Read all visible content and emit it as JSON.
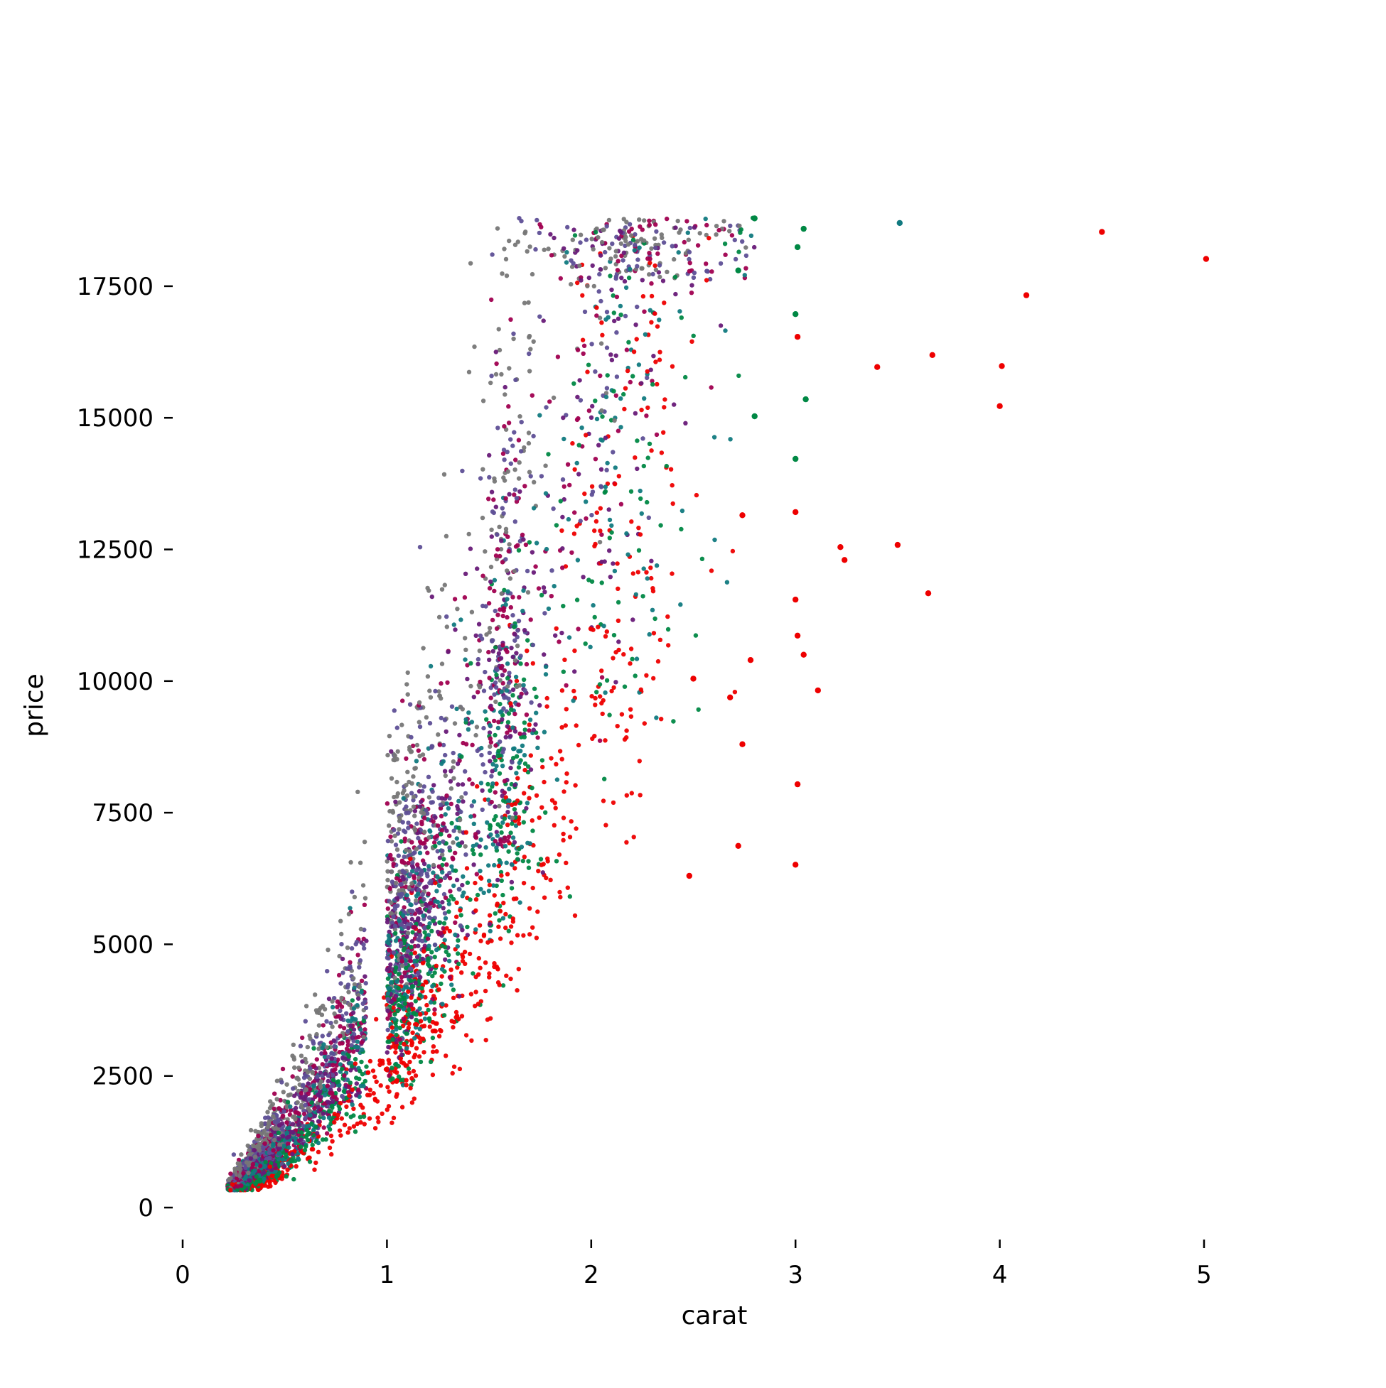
{
  "chart_data": {
    "type": "scatter",
    "title": "",
    "xlabel": "carat",
    "ylabel": "price",
    "xlim": [
      0,
      5.5
    ],
    "ylim": [
      -300,
      18900
    ],
    "xticks": [
      0,
      1,
      2,
      3,
      4,
      5
    ],
    "xtick_labels": [
      "0",
      "1",
      "2",
      "3",
      "4",
      "5"
    ],
    "yticks": [
      0,
      2500,
      5000,
      7500,
      10000,
      12500,
      15000,
      17500
    ],
    "ytick_labels": [
      "0",
      "2500",
      "5000",
      "7500",
      "10000",
      "12500",
      "15000",
      "17500"
    ],
    "grid": false,
    "legend": "none",
    "palette": [
      "#ee0000",
      "#008844",
      "#117a80",
      "#681a78",
      "#a00050",
      "#5e4f96",
      "#777777"
    ],
    "outliers": [
      {
        "x": 4.5,
        "y": 18531,
        "color": "#ee0000"
      },
      {
        "x": 5.01,
        "y": 18018,
        "color": "#ee0000"
      },
      {
        "x": 4.13,
        "y": 17329,
        "color": "#ee0000"
      },
      {
        "x": 3.67,
        "y": 16193,
        "color": "#ee0000"
      },
      {
        "x": 4.01,
        "y": 15984,
        "color": "#ee0000"
      },
      {
        "x": 3.4,
        "y": 15964,
        "color": "#ee0000"
      },
      {
        "x": 4.0,
        "y": 15223,
        "color": "#ee0000"
      },
      {
        "x": 3.5,
        "y": 12587,
        "color": "#ee0000"
      },
      {
        "x": 3.22,
        "y": 12545,
        "color": "#ee0000"
      },
      {
        "x": 3.24,
        "y": 12300,
        "color": "#ee0000"
      },
      {
        "x": 3.65,
        "y": 11668,
        "color": "#ee0000"
      },
      {
        "x": 3.01,
        "y": 16538,
        "color": "#ee0000"
      },
      {
        "x": 3.0,
        "y": 13210,
        "color": "#ee0000"
      },
      {
        "x": 2.74,
        "y": 13150,
        "color": "#ee0000"
      },
      {
        "x": 3.0,
        "y": 11548,
        "color": "#ee0000"
      },
      {
        "x": 3.01,
        "y": 10863,
        "color": "#ee0000"
      },
      {
        "x": 3.04,
        "y": 10500,
        "color": "#ee0000"
      },
      {
        "x": 3.11,
        "y": 9823,
        "color": "#ee0000"
      },
      {
        "x": 3.01,
        "y": 8040,
        "color": "#ee0000"
      },
      {
        "x": 3.0,
        "y": 6512,
        "color": "#ee0000"
      },
      {
        "x": 2.72,
        "y": 6870,
        "color": "#ee0000"
      },
      {
        "x": 2.48,
        "y": 6300,
        "color": "#ee0000"
      },
      {
        "x": 2.5,
        "y": 10046,
        "color": "#ee0000"
      },
      {
        "x": 2.68,
        "y": 9690,
        "color": "#ee0000"
      },
      {
        "x": 2.74,
        "y": 8800,
        "color": "#ee0000"
      },
      {
        "x": 2.78,
        "y": 10400,
        "color": "#ee0000"
      },
      {
        "x": 3.51,
        "y": 18701,
        "color": "#117a80"
      },
      {
        "x": 2.8,
        "y": 18788,
        "color": "#008844"
      },
      {
        "x": 3.01,
        "y": 18242,
        "color": "#008844"
      },
      {
        "x": 3.0,
        "y": 16970,
        "color": "#008844"
      },
      {
        "x": 3.05,
        "y": 15352,
        "color": "#008844"
      },
      {
        "x": 3.0,
        "y": 14220,
        "color": "#008844"
      },
      {
        "x": 2.8,
        "y": 15030,
        "color": "#008844"
      },
      {
        "x": 2.72,
        "y": 17800,
        "color": "#008844"
      },
      {
        "x": 3.04,
        "y": 18590,
        "color": "#008844"
      }
    ]
  }
}
